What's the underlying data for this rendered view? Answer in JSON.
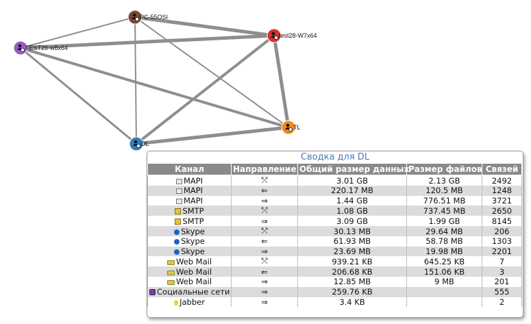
{
  "graph": {
    "nodes": [
      {
        "id": "pc55",
        "label": "PC-55OSI",
        "color": "#7a4a34"
      },
      {
        "id": "test28",
        "label": "test28-W7x64",
        "color": "#d43030"
      },
      {
        "id": "test26",
        "label": "TEST26-w8x64",
        "color": "#9b59c2"
      },
      {
        "id": "tl",
        "label": "TL",
        "color": "#f08a18"
      },
      {
        "id": "dl",
        "label": "DL",
        "color": "#2f7fc1"
      }
    ],
    "edges": [
      {
        "from": "pc55",
        "to": "test28",
        "weight": 5
      },
      {
        "from": "pc55",
        "to": "test26",
        "weight": 2
      },
      {
        "from": "pc55",
        "to": "tl",
        "weight": 2
      },
      {
        "from": "pc55",
        "to": "dl",
        "weight": 2
      },
      {
        "from": "test28",
        "to": "test26",
        "weight": 5
      },
      {
        "from": "test28",
        "to": "tl",
        "weight": 5
      },
      {
        "from": "test28",
        "to": "dl",
        "weight": 4
      },
      {
        "from": "test26",
        "to": "tl",
        "weight": 4
      },
      {
        "from": "test26",
        "to": "dl",
        "weight": 3
      },
      {
        "from": "tl",
        "to": "dl",
        "weight": 5
      }
    ]
  },
  "summary": {
    "title": "Сводка для DL",
    "headers": [
      "Канал",
      "Направление",
      "Общий размер данных",
      "Размер файлов",
      "Связей"
    ],
    "rows": [
      {
        "icon": "mapi-icon",
        "channel": "MAPI",
        "direction": "⤲",
        "total": "3.01 GB",
        "files": "2.13 GB",
        "links": "2492"
      },
      {
        "icon": "mapi-icon",
        "channel": "MAPI",
        "direction": "⇐",
        "total": "220.17 MB",
        "files": "120.5 MB",
        "links": "1248"
      },
      {
        "icon": "mapi-icon",
        "channel": "MAPI",
        "direction": "⇒",
        "total": "1.44 GB",
        "files": "776.51 MB",
        "links": "3721"
      },
      {
        "icon": "smtp-icon",
        "channel": "SMTP",
        "direction": "⤲",
        "total": "1.08 GB",
        "files": "737.45 MB",
        "links": "2650"
      },
      {
        "icon": "smtp-icon",
        "channel": "SMTP",
        "direction": "⇒",
        "total": "3.09 GB",
        "files": "1.99 GB",
        "links": "8145"
      },
      {
        "icon": "skype-icon",
        "channel": "Skype",
        "direction": "⤲",
        "total": "30.13 MB",
        "files": "29.64 MB",
        "links": "206"
      },
      {
        "icon": "skype-icon",
        "channel": "Skype",
        "direction": "⇐",
        "total": "61.93 MB",
        "files": "58.78 MB",
        "links": "1303"
      },
      {
        "icon": "skype-icon",
        "channel": "Skype",
        "direction": "⇒",
        "total": "23.69 MB",
        "files": "19.98 MB",
        "links": "2201"
      },
      {
        "icon": "web-mail-icon",
        "channel": "Web Mail",
        "direction": "⤲",
        "total": "939.21 KB",
        "files": "645.25 KB",
        "links": "7"
      },
      {
        "icon": "web-mail-icon",
        "channel": "Web Mail",
        "direction": "⇐",
        "total": "206.68 KB",
        "files": "151.06 KB",
        "links": "3"
      },
      {
        "icon": "web-mail-icon",
        "channel": "Web Mail",
        "direction": "⇒",
        "total": "12.85 MB",
        "files": "9 MB",
        "links": "201"
      },
      {
        "icon": "social-network-icon",
        "channel": "Социальные сети",
        "direction": "⇒",
        "total": "259.76 KB",
        "files": "",
        "links": "555"
      },
      {
        "icon": "jabber-icon",
        "channel": "Jabber",
        "direction": "⇒",
        "total": "3.4 KB",
        "files": "",
        "links": "2"
      }
    ]
  }
}
